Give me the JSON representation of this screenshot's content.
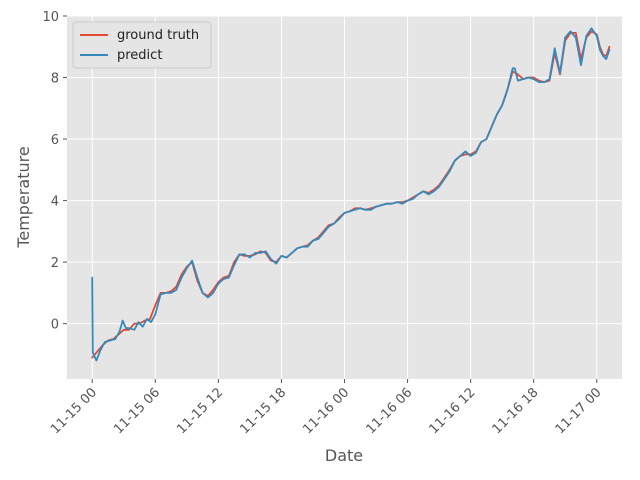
{
  "chart_data": {
    "type": "line",
    "title": "",
    "xlabel": "Date",
    "ylabel": "Temperature",
    "x_unit": "hours since 11-15 00",
    "xlim": [
      -2.4,
      50.4
    ],
    "ylim": [
      -1.8,
      10.0
    ],
    "grid": true,
    "legend_position": "top-left",
    "x_ticks": [
      {
        "value": 0,
        "label": "11-15 00"
      },
      {
        "value": 6,
        "label": "11-15 06"
      },
      {
        "value": 12,
        "label": "11-15 12"
      },
      {
        "value": 18,
        "label": "11-15 18"
      },
      {
        "value": 24,
        "label": "11-16 00"
      },
      {
        "value": 30,
        "label": "11-16 06"
      },
      {
        "value": 36,
        "label": "11-16 12"
      },
      {
        "value": 42,
        "label": "11-16 18"
      },
      {
        "value": 48,
        "label": "11-17 00"
      }
    ],
    "y_ticks": [
      {
        "value": 0,
        "label": "0"
      },
      {
        "value": 2,
        "label": "2"
      },
      {
        "value": 4,
        "label": "4"
      },
      {
        "value": 6,
        "label": "6"
      },
      {
        "value": 8,
        "label": "8"
      },
      {
        "value": 10,
        "label": "10"
      }
    ],
    "series": [
      {
        "name": "ground truth",
        "color": "#E24A33",
        "points": [
          [
            0,
            -1.1
          ],
          [
            0.5,
            -0.9
          ],
          [
            1,
            -0.7
          ],
          [
            1.5,
            -0.55
          ],
          [
            2,
            -0.5
          ],
          [
            2.5,
            -0.35
          ],
          [
            3,
            -0.2
          ],
          [
            3.5,
            -0.2
          ],
          [
            4,
            0.0
          ],
          [
            4.5,
            0.0
          ],
          [
            5,
            0.1
          ],
          [
            5.5,
            0.15
          ],
          [
            6,
            0.6
          ],
          [
            6.5,
            1.0
          ],
          [
            7,
            1.0
          ],
          [
            7.5,
            1.05
          ],
          [
            8,
            1.2
          ],
          [
            8.5,
            1.6
          ],
          [
            9,
            1.85
          ],
          [
            9.5,
            2.0
          ],
          [
            10,
            1.4
          ],
          [
            10.5,
            1.0
          ],
          [
            11,
            0.9
          ],
          [
            11.5,
            1.1
          ],
          [
            12,
            1.35
          ],
          [
            12.5,
            1.5
          ],
          [
            13,
            1.55
          ],
          [
            13.5,
            2.0
          ],
          [
            14,
            2.25
          ],
          [
            14.5,
            2.2
          ],
          [
            15,
            2.2
          ],
          [
            15.5,
            2.25
          ],
          [
            16,
            2.35
          ],
          [
            16.5,
            2.3
          ],
          [
            17,
            2.05
          ],
          [
            17.5,
            2.0
          ],
          [
            18,
            2.2
          ],
          [
            18.5,
            2.15
          ],
          [
            19,
            2.3
          ],
          [
            19.5,
            2.45
          ],
          [
            20,
            2.5
          ],
          [
            20.5,
            2.55
          ],
          [
            21,
            2.7
          ],
          [
            21.5,
            2.8
          ],
          [
            22,
            3.0
          ],
          [
            22.5,
            3.2
          ],
          [
            23,
            3.25
          ],
          [
            23.5,
            3.45
          ],
          [
            24,
            3.6
          ],
          [
            24.5,
            3.65
          ],
          [
            25,
            3.75
          ],
          [
            25.5,
            3.75
          ],
          [
            26,
            3.7
          ],
          [
            26.5,
            3.75
          ],
          [
            27,
            3.8
          ],
          [
            27.5,
            3.85
          ],
          [
            28,
            3.9
          ],
          [
            28.5,
            3.9
          ],
          [
            29,
            3.95
          ],
          [
            29.5,
            3.95
          ],
          [
            30,
            4.0
          ],
          [
            30.5,
            4.1
          ],
          [
            31,
            4.2
          ],
          [
            31.5,
            4.3
          ],
          [
            32,
            4.25
          ],
          [
            32.5,
            4.35
          ],
          [
            33,
            4.5
          ],
          [
            33.5,
            4.75
          ],
          [
            34,
            5.0
          ],
          [
            34.5,
            5.3
          ],
          [
            35,
            5.45
          ],
          [
            35.5,
            5.5
          ],
          [
            36,
            5.5
          ],
          [
            36.5,
            5.6
          ],
          [
            37,
            5.9
          ],
          [
            37.5,
            6.0
          ],
          [
            38,
            6.4
          ],
          [
            38.5,
            6.8
          ],
          [
            39,
            7.1
          ],
          [
            39.5,
            7.6
          ],
          [
            40,
            8.2
          ],
          [
            40.5,
            8.1
          ],
          [
            41,
            7.95
          ],
          [
            41.5,
            8.0
          ],
          [
            42,
            8.0
          ],
          [
            42.5,
            7.9
          ],
          [
            43,
            7.85
          ],
          [
            43.5,
            7.9
          ],
          [
            44,
            8.8
          ],
          [
            44.5,
            8.1
          ],
          [
            45,
            9.2
          ],
          [
            45.5,
            9.45
          ],
          [
            46,
            9.45
          ],
          [
            46.5,
            8.6
          ],
          [
            47,
            9.3
          ],
          [
            47.5,
            9.5
          ],
          [
            48,
            9.4
          ],
          [
            48.3,
            9.0
          ],
          [
            48.6,
            8.75
          ],
          [
            48.9,
            8.7
          ],
          [
            49.2,
            9.0
          ]
        ]
      },
      {
        "name": "predict",
        "color": "#348ABD",
        "points": [
          [
            0,
            1.5
          ],
          [
            0.05,
            -0.95
          ],
          [
            0.4,
            -1.2
          ],
          [
            0.8,
            -0.85
          ],
          [
            1.2,
            -0.6
          ],
          [
            1.7,
            -0.55
          ],
          [
            2.2,
            -0.5
          ],
          [
            2.6,
            -0.25
          ],
          [
            2.9,
            0.1
          ],
          [
            3.2,
            -0.15
          ],
          [
            3.5,
            -0.15
          ],
          [
            4,
            -0.2
          ],
          [
            4.4,
            0.05
          ],
          [
            4.8,
            -0.1
          ],
          [
            5.2,
            0.15
          ],
          [
            5.6,
            0.05
          ],
          [
            6,
            0.3
          ],
          [
            6.5,
            0.95
          ],
          [
            7,
            1.0
          ],
          [
            7.5,
            1.0
          ],
          [
            8,
            1.1
          ],
          [
            8.5,
            1.5
          ],
          [
            9,
            1.8
          ],
          [
            9.5,
            2.05
          ],
          [
            10,
            1.5
          ],
          [
            10.5,
            1.0
          ],
          [
            11,
            0.85
          ],
          [
            11.5,
            1.0
          ],
          [
            12,
            1.3
          ],
          [
            12.5,
            1.45
          ],
          [
            13,
            1.5
          ],
          [
            13.5,
            1.9
          ],
          [
            14,
            2.25
          ],
          [
            14.5,
            2.25
          ],
          [
            15,
            2.15
          ],
          [
            15.5,
            2.3
          ],
          [
            16,
            2.3
          ],
          [
            16.5,
            2.35
          ],
          [
            17,
            2.1
          ],
          [
            17.5,
            1.95
          ],
          [
            18,
            2.2
          ],
          [
            18.5,
            2.15
          ],
          [
            19,
            2.3
          ],
          [
            19.5,
            2.45
          ],
          [
            20,
            2.5
          ],
          [
            20.5,
            2.5
          ],
          [
            21,
            2.7
          ],
          [
            21.5,
            2.75
          ],
          [
            22,
            2.95
          ],
          [
            22.5,
            3.15
          ],
          [
            23,
            3.25
          ],
          [
            23.5,
            3.4
          ],
          [
            24,
            3.6
          ],
          [
            24.5,
            3.65
          ],
          [
            25,
            3.7
          ],
          [
            25.5,
            3.75
          ],
          [
            26,
            3.7
          ],
          [
            26.5,
            3.7
          ],
          [
            27,
            3.8
          ],
          [
            27.5,
            3.85
          ],
          [
            28,
            3.9
          ],
          [
            28.5,
            3.9
          ],
          [
            29,
            3.95
          ],
          [
            29.5,
            3.9
          ],
          [
            30,
            4.0
          ],
          [
            30.5,
            4.05
          ],
          [
            31,
            4.2
          ],
          [
            31.5,
            4.3
          ],
          [
            32,
            4.2
          ],
          [
            32.5,
            4.3
          ],
          [
            33,
            4.45
          ],
          [
            33.5,
            4.7
          ],
          [
            34,
            4.95
          ],
          [
            34.5,
            5.3
          ],
          [
            35,
            5.45
          ],
          [
            35.5,
            5.6
          ],
          [
            36,
            5.45
          ],
          [
            36.5,
            5.55
          ],
          [
            37,
            5.9
          ],
          [
            37.5,
            6.0
          ],
          [
            38,
            6.4
          ],
          [
            38.5,
            6.8
          ],
          [
            39,
            7.1
          ],
          [
            39.5,
            7.6
          ],
          [
            40,
            8.3
          ],
          [
            40.2,
            8.3
          ],
          [
            40.5,
            7.9
          ],
          [
            41,
            7.95
          ],
          [
            41.5,
            8.0
          ],
          [
            42,
            7.95
          ],
          [
            42.5,
            7.85
          ],
          [
            43,
            7.85
          ],
          [
            43.5,
            7.95
          ],
          [
            44,
            8.95
          ],
          [
            44.5,
            8.15
          ],
          [
            45,
            9.3
          ],
          [
            45.5,
            9.5
          ],
          [
            46,
            9.3
          ],
          [
            46.5,
            8.4
          ],
          [
            47,
            9.35
          ],
          [
            47.5,
            9.6
          ],
          [
            48,
            9.35
          ],
          [
            48.3,
            8.9
          ],
          [
            48.6,
            8.7
          ],
          [
            48.9,
            8.6
          ],
          [
            49.2,
            8.9
          ]
        ]
      }
    ]
  }
}
